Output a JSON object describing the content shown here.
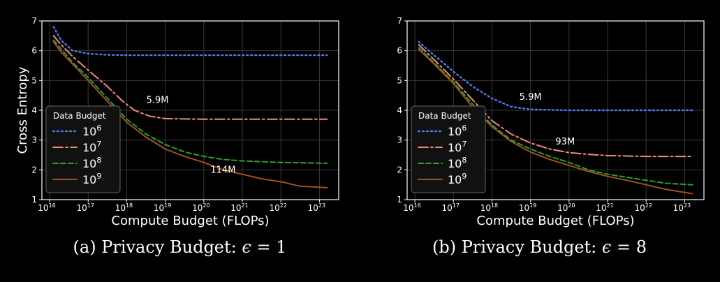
{
  "chart_data": [
    {
      "type": "line",
      "panel": "a",
      "caption_prefix": "(a) Privacy Budget: ",
      "caption_symbol": "ϵ",
      "caption_suffix": " = 1",
      "xlabel": "Compute Budget (FLOPs)",
      "ylabel": "Cross Entropy",
      "xscale": "log",
      "xlim_exp": [
        15.8,
        23.5
      ],
      "x_tick_exponents": [
        16,
        17,
        18,
        19,
        20,
        21,
        22,
        23
      ],
      "x_tick_base": "10",
      "ylim": [
        1,
        7
      ],
      "y_ticks": [
        "1",
        "2",
        "3",
        "4",
        "5",
        "6",
        "7"
      ],
      "grid": true,
      "legend": {
        "title": "Data Budget",
        "placement": "center-left"
      },
      "series": [
        {
          "name": "10^6",
          "base": "10",
          "exp": "6",
          "color": "#4f7be8",
          "dash": "2,4",
          "points": [
            [
              16.1,
              6.8
            ],
            [
              16.3,
              6.35
            ],
            [
              16.6,
              6.0
            ],
            [
              17.0,
              5.9
            ],
            [
              17.5,
              5.86
            ],
            [
              18.0,
              5.85
            ],
            [
              19.0,
              5.85
            ],
            [
              20.0,
              5.85
            ],
            [
              21.0,
              5.85
            ],
            [
              22.0,
              5.85
            ],
            [
              23.2,
              5.85
            ]
          ]
        },
        {
          "name": "10^7",
          "base": "10",
          "exp": "7",
          "color": "#f08a80",
          "dash": "14,4,3,4",
          "points": [
            [
              16.1,
              6.5
            ],
            [
              16.3,
              6.2
            ],
            [
              16.6,
              5.8
            ],
            [
              17.0,
              5.35
            ],
            [
              17.5,
              4.8
            ],
            [
              17.9,
              4.3
            ],
            [
              18.2,
              4.0
            ],
            [
              18.6,
              3.8
            ],
            [
              19.0,
              3.72
            ],
            [
              20.0,
              3.7
            ],
            [
              21.0,
              3.7
            ],
            [
              22.0,
              3.7
            ],
            [
              23.2,
              3.7
            ]
          ]
        },
        {
          "name": "10^8",
          "base": "10",
          "exp": "8",
          "color": "#2ca02c",
          "dash": "7,4",
          "points": [
            [
              16.1,
              6.35
            ],
            [
              16.3,
              6.05
            ],
            [
              16.6,
              5.6
            ],
            [
              17.0,
              5.1
            ],
            [
              17.5,
              4.4
            ],
            [
              18.0,
              3.7
            ],
            [
              18.5,
              3.2
            ],
            [
              19.0,
              2.85
            ],
            [
              19.5,
              2.6
            ],
            [
              20.0,
              2.45
            ],
            [
              20.5,
              2.35
            ],
            [
              21.0,
              2.3
            ],
            [
              22.0,
              2.25
            ],
            [
              23.2,
              2.22
            ]
          ]
        },
        {
          "name": "10^9",
          "base": "10",
          "exp": "9",
          "color": "#a0521b",
          "dash": "",
          "points": [
            [
              16.1,
              6.3
            ],
            [
              16.3,
              5.95
            ],
            [
              16.6,
              5.55
            ],
            [
              17.0,
              5.0
            ],
            [
              17.5,
              4.3
            ],
            [
              18.0,
              3.6
            ],
            [
              18.5,
              3.1
            ],
            [
              19.0,
              2.7
            ],
            [
              19.5,
              2.45
            ],
            [
              20.0,
              2.25
            ],
            [
              20.5,
              2.0
            ],
            [
              21.0,
              1.85
            ],
            [
              21.5,
              1.7
            ],
            [
              22.0,
              1.6
            ],
            [
              22.5,
              1.45
            ],
            [
              23.2,
              1.4
            ]
          ]
        }
      ],
      "annotations": [
        {
          "text": "5.9M",
          "x": 18.8,
          "y": 4.25
        },
        {
          "text": "114M",
          "x": 20.5,
          "y": 1.9
        }
      ]
    },
    {
      "type": "line",
      "panel": "b",
      "caption_prefix": "(b) Privacy Budget: ",
      "caption_symbol": "ϵ",
      "caption_suffix": " = 8",
      "xlabel": "Compute Budget (FLOPs)",
      "ylabel": "",
      "xscale": "log",
      "xlim_exp": [
        15.8,
        23.5
      ],
      "x_tick_exponents": [
        16,
        17,
        18,
        19,
        20,
        21,
        22,
        23
      ],
      "x_tick_base": "10",
      "ylim": [
        1,
        7
      ],
      "y_ticks": [
        "1",
        "2",
        "3",
        "4",
        "5",
        "6",
        "7"
      ],
      "grid": true,
      "legend": {
        "title": "Data Budget",
        "placement": "center-left"
      },
      "series": [
        {
          "name": "10^6",
          "base": "10",
          "exp": "6",
          "color": "#4f7be8",
          "dash": "2,4",
          "points": [
            [
              16.1,
              6.3
            ],
            [
              16.5,
              5.85
            ],
            [
              17.0,
              5.3
            ],
            [
              17.5,
              4.8
            ],
            [
              18.0,
              4.4
            ],
            [
              18.5,
              4.12
            ],
            [
              19.0,
              4.03
            ],
            [
              20.0,
              4.0
            ],
            [
              21.0,
              4.0
            ],
            [
              22.0,
              4.0
            ],
            [
              23.2,
              4.0
            ]
          ]
        },
        {
          "name": "10^7",
          "base": "10",
          "exp": "7",
          "color": "#f08a80",
          "dash": "14,4,3,4",
          "points": [
            [
              16.1,
              6.2
            ],
            [
              16.5,
              5.7
            ],
            [
              17.0,
              5.05
            ],
            [
              17.5,
              4.35
            ],
            [
              18.0,
              3.65
            ],
            [
              18.5,
              3.2
            ],
            [
              19.0,
              2.9
            ],
            [
              19.5,
              2.7
            ],
            [
              20.0,
              2.58
            ],
            [
              20.5,
              2.52
            ],
            [
              21.0,
              2.48
            ],
            [
              22.0,
              2.45
            ],
            [
              23.2,
              2.45
            ]
          ]
        },
        {
          "name": "10^8",
          "base": "10",
          "exp": "8",
          "color": "#2ca02c",
          "dash": "7,4",
          "points": [
            [
              16.1,
              6.1
            ],
            [
              16.5,
              5.6
            ],
            [
              17.0,
              4.95
            ],
            [
              17.5,
              4.2
            ],
            [
              18.0,
              3.5
            ],
            [
              18.5,
              3.0
            ],
            [
              19.0,
              2.7
            ],
            [
              19.5,
              2.45
            ],
            [
              20.0,
              2.25
            ],
            [
              20.5,
              2.0
            ],
            [
              21.0,
              1.85
            ],
            [
              21.5,
              1.75
            ],
            [
              22.0,
              1.65
            ],
            [
              22.5,
              1.55
            ],
            [
              23.2,
              1.5
            ]
          ]
        },
        {
          "name": "10^9",
          "base": "10",
          "exp": "9",
          "color": "#a0521b",
          "dash": "",
          "points": [
            [
              16.1,
              6.05
            ],
            [
              16.5,
              5.55
            ],
            [
              17.0,
              4.9
            ],
            [
              17.5,
              4.1
            ],
            [
              18.0,
              3.45
            ],
            [
              18.5,
              2.95
            ],
            [
              19.0,
              2.6
            ],
            [
              19.5,
              2.35
            ],
            [
              20.0,
              2.15
            ],
            [
              20.5,
              1.95
            ],
            [
              21.0,
              1.78
            ],
            [
              21.5,
              1.65
            ],
            [
              22.0,
              1.5
            ],
            [
              22.5,
              1.35
            ],
            [
              23.2,
              1.2
            ]
          ]
        }
      ],
      "annotations": [
        {
          "text": "5.9M",
          "x": 19.0,
          "y": 4.35
        },
        {
          "text": "93M",
          "x": 19.9,
          "y": 2.85
        }
      ]
    }
  ]
}
